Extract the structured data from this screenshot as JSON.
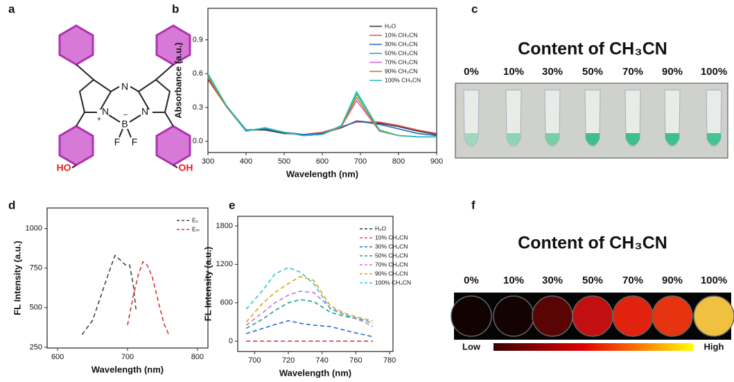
{
  "panels": {
    "labels": [
      "a",
      "b",
      "c",
      "d",
      "e",
      "f"
    ]
  },
  "molecule": {
    "atoms": [
      "N",
      "N",
      "N",
      "B",
      "F",
      "F",
      "HO",
      "OH"
    ],
    "charges": [
      "+",
      "−"
    ]
  },
  "photo_c": {
    "title": "Content of CH₃CN",
    "contents": [
      "0%",
      "10%",
      "30%",
      "50%",
      "70%",
      "90%",
      "100%"
    ]
  },
  "photo_f": {
    "title": "Content of CH₃CN",
    "contents": [
      "0%",
      "10%",
      "30%",
      "50%",
      "70%",
      "90%",
      "100%"
    ],
    "scale_low": "Low",
    "scale_high": "High"
  },
  "chart_data": [
    {
      "type": "line",
      "line_style": "solid",
      "xlabel": "Wavelength (nm)",
      "ylabel": "Absorbance (a.u.)",
      "xlim": [
        300,
        900
      ],
      "xticks": [
        300,
        400,
        500,
        600,
        700,
        800,
        900
      ],
      "ylim": [
        -0.1,
        1.18
      ],
      "yticks": [
        {
          "value": 0,
          "label": "0.0"
        },
        0.3,
        0.6,
        0.9
      ],
      "x": [
        300,
        350,
        400,
        450,
        500,
        550,
        600,
        650,
        690,
        750,
        800,
        850,
        900
      ],
      "series": [
        {
          "name": "H₂O",
          "color": "#333333",
          "values": [
            0.55,
            0.3,
            0.1,
            0.1,
            0.07,
            0.06,
            0.07,
            0.12,
            0.18,
            0.16,
            0.13,
            0.09,
            0.06
          ]
        },
        {
          "name": "10% CH₃CN",
          "color": "#e05050",
          "values": [
            0.56,
            0.3,
            0.1,
            0.11,
            0.08,
            0.06,
            0.08,
            0.13,
            0.17,
            0.17,
            0.14,
            0.1,
            0.07
          ]
        },
        {
          "name": "30% CH₃CN",
          "color": "#2060c0",
          "values": [
            0.57,
            0.31,
            0.1,
            0.11,
            0.08,
            0.06,
            0.07,
            0.12,
            0.18,
            0.15,
            0.11,
            0.07,
            0.05
          ]
        },
        {
          "name": "50% CH₃CN",
          "color": "#20b080",
          "values": [
            0.58,
            0.3,
            0.09,
            0.12,
            0.08,
            0.05,
            0.06,
            0.14,
            0.42,
            0.1,
            0.05,
            0.04,
            0.04
          ]
        },
        {
          "name": "70% CH₃CN",
          "color": "#d060d0",
          "values": [
            0.57,
            0.3,
            0.09,
            0.12,
            0.08,
            0.05,
            0.06,
            0.13,
            0.36,
            0.09,
            0.05,
            0.04,
            0.04
          ]
        },
        {
          "name": "90% CH₃CN",
          "color": "#c08000",
          "values": [
            0.57,
            0.3,
            0.09,
            0.12,
            0.08,
            0.05,
            0.06,
            0.13,
            0.39,
            0.09,
            0.05,
            0.04,
            0.04
          ]
        },
        {
          "name": "100% CH₃CN",
          "color": "#20c0c0",
          "values": [
            0.6,
            0.31,
            0.09,
            0.12,
            0.08,
            0.05,
            0.06,
            0.14,
            0.44,
            0.1,
            0.05,
            0.04,
            0.04
          ]
        }
      ]
    },
    {
      "type": "line",
      "line_style": "dashed",
      "xlabel": "Wavelength (nm)",
      "ylabel": "FL Intensity (a.u.)",
      "xlim": [
        585,
        815
      ],
      "xticks": [
        600,
        700,
        800
      ],
      "ylim": [
        245,
        1130
      ],
      "yticks": [
        250,
        500,
        750,
        1000
      ],
      "series": [
        {
          "name": "Eₓ",
          "color": "#444444",
          "x": [
            635,
            650,
            660,
            670,
            682,
            690,
            697,
            703,
            708,
            712
          ],
          "values": [
            330,
            420,
            550,
            680,
            830,
            800,
            770,
            770,
            650,
            490
          ]
        },
        {
          "name": "Eₘ",
          "color": "#e03030",
          "x": [
            700,
            708,
            715,
            722,
            728,
            735,
            745,
            752,
            760
          ],
          "values": [
            390,
            570,
            700,
            790,
            770,
            700,
            520,
            400,
            320
          ]
        }
      ]
    },
    {
      "type": "line",
      "line_style": "dashed",
      "xlabel": "Wavelength (nm)",
      "ylabel": "FL Intensity (a.u.)",
      "xlim": [
        690,
        782
      ],
      "xticks": [
        700,
        720,
        740,
        760,
        780
      ],
      "ylim": [
        -160,
        1950
      ],
      "yticks": [
        0,
        600,
        1200,
        1800
      ],
      "x": [
        695,
        705,
        712,
        720,
        727,
        735,
        745,
        755,
        765,
        770
      ],
      "series": [
        {
          "name": "H₂O",
          "color": "#333333",
          "values": [
            0,
            0,
            0,
            0,
            0,
            0,
            0,
            0,
            0,
            0
          ]
        },
        {
          "name": "10% CH₃CN",
          "color": "#ff4040",
          "values": [
            0,
            0,
            0,
            0,
            0,
            0,
            0,
            0,
            0,
            0
          ]
        },
        {
          "name": "30% CH₃CN",
          "color": "#1e6fd0",
          "values": [
            120,
            200,
            260,
            320,
            280,
            250,
            230,
            160,
            100,
            70
          ]
        },
        {
          "name": "50% CH₃CN",
          "color": "#10a080",
          "values": [
            200,
            350,
            480,
            600,
            650,
            620,
            450,
            380,
            330,
            280
          ]
        },
        {
          "name": "70% CH₃CN",
          "color": "#c070e0",
          "values": [
            250,
            450,
            600,
            720,
            780,
            760,
            520,
            400,
            300,
            230
          ]
        },
        {
          "name": "90% CH₃CN",
          "color": "#e0a000",
          "values": [
            300,
            600,
            760,
            900,
            1010,
            950,
            550,
            420,
            350,
            320
          ]
        },
        {
          "name": "100% CH₃CN",
          "color": "#20c8d0",
          "values": [
            500,
            800,
            1050,
            1150,
            1080,
            900,
            500,
            400,
            330,
            280
          ]
        }
      ]
    }
  ]
}
